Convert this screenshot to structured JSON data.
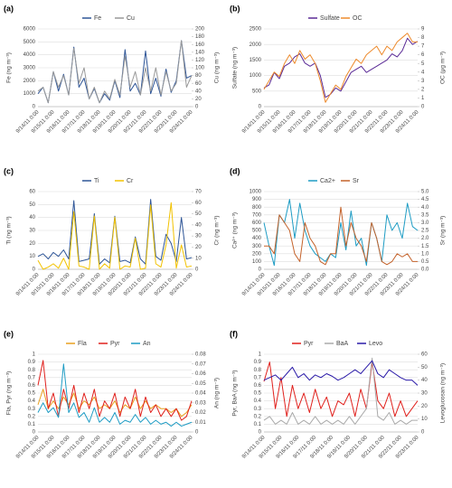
{
  "chart_data": [
    {
      "type": "line",
      "title": "(a)",
      "y_label": "Fe (ng m⁻³)",
      "y2_label": "Cu (ng m⁻³)",
      "categories": [
        "9/14/11 0:00",
        null,
        null,
        "9/15/11 0:00",
        null,
        null,
        "9/16/11 0:00",
        null,
        null,
        "9/17/11 0:00",
        null,
        null,
        "9/18/11 0:00",
        null,
        null,
        "9/19/11 0:00",
        null,
        null,
        "9/20/11 0:00",
        null,
        null,
        "9/21/11 0:00",
        null,
        null,
        "9/22/11 0:00",
        null,
        null,
        "9/23/11 0:00",
        null,
        null,
        "9/24/11 0:00"
      ],
      "ylim": [
        0,
        6000
      ],
      "yticks": [
        0,
        1000,
        2000,
        3000,
        4000,
        5000,
        6000
      ],
      "y2lim": [
        0,
        200
      ],
      "y2ticks": [
        0,
        20,
        40,
        60,
        80,
        100,
        120,
        140,
        160,
        180,
        200
      ],
      "grid": true,
      "series": [
        {
          "name": "Fe",
          "color": "#2e5597",
          "values": [
            1000,
            1500,
            300,
            2700,
            1200,
            2500,
            900,
            4600,
            1500,
            2200,
            600,
            1400,
            300,
            1000,
            500,
            2000,
            700,
            4400,
            1200,
            1800,
            900,
            4300,
            1000,
            2200,
            800,
            2900,
            1100,
            2000,
            5100,
            2200,
            2400
          ]
        },
        {
          "name": "Cu",
          "color": "#999999",
          "axis": "y2",
          "values": [
            40,
            50,
            10,
            90,
            50,
            80,
            30,
            150,
            60,
            100,
            20,
            50,
            10,
            40,
            20,
            70,
            30,
            130,
            50,
            90,
            30,
            100,
            40,
            100,
            30,
            90,
            40,
            60,
            170,
            50,
            80
          ]
        }
      ]
    },
    {
      "type": "line",
      "title": "(b)",
      "y_label": "Sulfate (ng m⁻³)",
      "y2_label": "OC (μg m⁻³)",
      "categories": [
        "9/14/11 0:00",
        null,
        null,
        "9/15/11 0:00",
        null,
        null,
        "9/16/11 0:00",
        null,
        null,
        "9/17/11 0:00",
        null,
        null,
        "9/18/11 0:00",
        null,
        null,
        "9/19/11 0:00",
        null,
        null,
        "9/20/11 0:00",
        null,
        null,
        "9/21/11 0:00",
        null,
        null,
        "9/22/11 0:00",
        null,
        null,
        "9/23/11 0:00",
        null,
        null,
        "9/24/11 0:00"
      ],
      "ylim": [
        0,
        2500
      ],
      "yticks": [
        0,
        500,
        1000,
        1500,
        2000,
        2500
      ],
      "y2lim": [
        0,
        9
      ],
      "y2ticks": [
        0,
        1,
        2,
        3,
        4,
        5,
        6,
        7,
        8,
        9
      ],
      "grid": true,
      "series": [
        {
          "name": "Sulfate",
          "color": "#5a2a96",
          "values": [
            600,
            700,
            1100,
            900,
            1300,
            1400,
            1600,
            1700,
            1400,
            1300,
            1400,
            1000,
            300,
            400,
            600,
            500,
            800,
            1100,
            1200,
            1300,
            1100,
            1200,
            1300,
            1400,
            1500,
            1700,
            1600,
            1800,
            2200,
            2000,
            2100
          ]
        },
        {
          "name": "OC",
          "color": "#ed8a2c",
          "axis": "y2",
          "values": [
            2,
            3,
            4,
            3.5,
            5,
            6,
            5,
            6.5,
            5.5,
            6,
            5,
            3,
            0.5,
            1.5,
            2.5,
            2,
            3.5,
            4.5,
            5.5,
            5,
            6,
            6.5,
            7,
            6,
            7,
            6.5,
            7.5,
            8,
            8.5,
            7.5,
            7.5
          ]
        }
      ]
    },
    {
      "type": "line",
      "title": "(c)",
      "y_label": "Ti (ng m⁻³)",
      "y2_label": "Cr (ng m⁻³)",
      "categories": [
        "9/14/11 0:00",
        null,
        null,
        "9/15/11 0:00",
        null,
        null,
        "9/16/11 0:00",
        null,
        null,
        "9/17/11 0:00",
        null,
        null,
        "9/18/11 0:00",
        null,
        null,
        "9/19/11 0:00",
        null,
        null,
        "9/20/11 0:00",
        null,
        null,
        "9/21/11 0:00",
        null,
        null,
        "9/22/11 0:00",
        null,
        null,
        "9/23/11 0:00",
        null,
        null,
        "9/24/11 0:00"
      ],
      "ylim": [
        0,
        60
      ],
      "yticks": [
        0,
        10,
        20,
        30,
        40,
        50,
        60
      ],
      "y2lim": [
        0,
        70
      ],
      "y2ticks": [
        0,
        10,
        20,
        30,
        40,
        50,
        60,
        70
      ],
      "grid": true,
      "series": [
        {
          "name": "Ti",
          "color": "#2e5597",
          "values": [
            10,
            12,
            8,
            13,
            10,
            15,
            8,
            53,
            6,
            7,
            8,
            43,
            4,
            8,
            5,
            41,
            6,
            7,
            5,
            25,
            8,
            4,
            54,
            10,
            7,
            27,
            20,
            6,
            40,
            8,
            9
          ]
        },
        {
          "name": "Cr",
          "color": "#f2c200",
          "axis": "y2",
          "values": [
            8,
            0,
            2,
            5,
            1,
            10,
            0,
            52,
            3,
            2,
            0,
            48,
            0,
            5,
            1,
            47,
            0,
            3,
            2,
            28,
            0,
            1,
            58,
            5,
            2,
            22,
            60,
            1,
            22,
            2,
            3
          ]
        }
      ]
    },
    {
      "type": "line",
      "title": "(d)",
      "y_label": "Ca²⁺ (ng m⁻³)",
      "y2_label": "Sr (ng m⁻³)",
      "categories": [
        "9/14/11 0:00",
        null,
        null,
        "9/15/11 0:00",
        null,
        null,
        "9/16/11 0:00",
        null,
        null,
        "9/17/11 0:00",
        null,
        null,
        "9/18/11 0:00",
        null,
        null,
        "9/19/11 0:00",
        null,
        null,
        "9/20/11 0:00",
        null,
        null,
        "9/21/11 0:00",
        null,
        null,
        "9/22/11 0:00",
        null,
        null,
        "9/23/11 0:00",
        null,
        null,
        "9/24/11 0:00"
      ],
      "ylim": [
        0,
        1000
      ],
      "yticks": [
        0,
        100,
        200,
        300,
        400,
        500,
        600,
        700,
        800,
        900,
        1000
      ],
      "y2lim": [
        0,
        5
      ],
      "y2ticks": [
        {
          "value": 0,
          "label": "0.0"
        },
        0.5,
        {
          "value": 1,
          "label": "1.0"
        },
        1.5,
        {
          "value": 2,
          "label": "2.0"
        },
        2.5,
        {
          "value": 3,
          "label": "3.0"
        },
        3.5,
        {
          "value": 4,
          "label": "4.0"
        },
        4.5,
        {
          "value": 5,
          "label": "5.0"
        }
      ],
      "grid": true,
      "series": [
        {
          "name": "Ca2+",
          "color": "#1e9cc4",
          "values": [
            600,
            300,
            50,
            700,
            600,
            900,
            400,
            850,
            500,
            300,
            200,
            150,
            100,
            200,
            150,
            600,
            250,
            750,
            300,
            400,
            50,
            600,
            400,
            100,
            700,
            500,
            600,
            400,
            850,
            550,
            500
          ]
        },
        {
          "name": "Sr",
          "color": "#c4622a",
          "axis": "y2",
          "values": [
            1.5,
            1.5,
            1.0,
            3.5,
            3.0,
            2.5,
            1.0,
            0.5,
            3.0,
            2.0,
            1.5,
            0.5,
            0.3,
            1.0,
            1.0,
            4.0,
            1.5,
            3.0,
            2.0,
            1.5,
            0.5,
            3.0,
            2.0,
            0.5,
            0.3,
            0.5,
            1.0,
            0.8,
            1.0,
            0.5,
            0.5
          ]
        }
      ]
    },
    {
      "type": "line",
      "title": "(e)",
      "y_label": "Fla, Pyr (ng m⁻³)",
      "y2_label": "An (ng m⁻³)",
      "categories": [
        "9/14/11 0:00",
        null,
        null,
        "9/15/11 0:00",
        null,
        null,
        "9/16/11 0:00",
        null,
        null,
        "9/17/11 0:00",
        null,
        null,
        "9/18/11 0:00",
        null,
        null,
        "9/19/11 0:00",
        null,
        null,
        "9/20/11 0:00",
        null,
        null,
        "9/21/11 0:00",
        null,
        null,
        "9/22/11 0:00",
        null,
        null,
        "9/23/11 0:00",
        null,
        null,
        "9/24/11 0:00"
      ],
      "ylim": [
        0,
        1
      ],
      "yticks": [
        0,
        0.1,
        0.2,
        0.3,
        0.4,
        0.5,
        0.6,
        0.7,
        0.8,
        0.9,
        1
      ],
      "y2lim": [
        0,
        0.08
      ],
      "y2ticks": [
        0,
        0.01,
        0.02,
        0.03,
        0.04,
        0.05,
        0.06,
        0.07,
        0.08
      ],
      "grid": true,
      "series": [
        {
          "name": "Fla",
          "color": "#e8a020",
          "values": [
            0.35,
            0.55,
            0.3,
            0.4,
            0.3,
            0.45,
            0.35,
            0.5,
            0.3,
            0.4,
            0.35,
            0.45,
            0.3,
            0.35,
            0.3,
            0.4,
            0.25,
            0.35,
            0.3,
            0.45,
            0.3,
            0.4,
            0.3,
            0.35,
            0.3,
            0.3,
            0.25,
            0.3,
            0.2,
            0.25,
            0.35
          ]
        },
        {
          "name": "Pyr",
          "color": "#e0201c",
          "values": [
            0.6,
            0.92,
            0.3,
            0.5,
            0.2,
            0.55,
            0.3,
            0.6,
            0.25,
            0.5,
            0.3,
            0.55,
            0.2,
            0.4,
            0.3,
            0.5,
            0.2,
            0.45,
            0.3,
            0.55,
            0.2,
            0.45,
            0.25,
            0.35,
            0.2,
            0.3,
            0.2,
            0.3,
            0.15,
            0.2,
            0.4
          ]
        },
        {
          "name": "An",
          "color": "#1e9cc4",
          "axis": "y2",
          "values": [
            0.02,
            0.03,
            0.02,
            0.025,
            0.015,
            0.07,
            0.02,
            0.03,
            0.015,
            0.02,
            0.01,
            0.025,
            0.01,
            0.015,
            0.01,
            0.02,
            0.008,
            0.012,
            0.01,
            0.018,
            0.01,
            0.015,
            0.008,
            0.012,
            0.008,
            0.01,
            0.006,
            0.01,
            0.006,
            0.008,
            0.01
          ]
        }
      ]
    },
    {
      "type": "line",
      "title": "(f)",
      "y_label": "Pyr, BaA (ng m⁻³)",
      "y2_label": "Levoglucosan (ng m⁻³)",
      "categories": [
        "9/14/11 0:00",
        null,
        null,
        "9/15/11 0:00",
        null,
        null,
        "9/16/11 0:00",
        null,
        null,
        "9/17/11 0:00",
        null,
        null,
        "9/18/11 0:00",
        null,
        null,
        "9/19/11 0:00",
        null,
        null,
        "9/20/11 0:00",
        null,
        null,
        "9/21/11 0:00",
        null,
        null,
        "9/22/11 0:00",
        null,
        null,
        "9/23/11 0:00"
      ],
      "ylim": [
        0,
        1
      ],
      "yticks": [
        0,
        0.1,
        0.2,
        0.3,
        0.4,
        0.5,
        0.6,
        0.7,
        0.8,
        0.9,
        1
      ],
      "y2lim": [
        0,
        60
      ],
      "y2ticks": [
        0,
        10,
        20,
        30,
        40,
        50,
        60
      ],
      "grid": true,
      "series": [
        {
          "name": "Pyr",
          "color": "#e0201c",
          "values": [
            0.65,
            0.9,
            0.3,
            0.7,
            0.2,
            0.6,
            0.3,
            0.5,
            0.25,
            0.55,
            0.3,
            0.45,
            0.2,
            0.4,
            0.35,
            0.5,
            0.2,
            0.55,
            0.3,
            0.9,
            0.4,
            0.3,
            0.5,
            0.2,
            0.4,
            0.2,
            0.3,
            0.4
          ]
        },
        {
          "name": "BaA",
          "color": "#aaaaaa",
          "values": [
            0.15,
            0.2,
            0.1,
            0.15,
            0.1,
            0.25,
            0.1,
            0.15,
            0.1,
            0.2,
            0.1,
            0.15,
            0.1,
            0.15,
            0.1,
            0.2,
            0.1,
            0.2,
            0.3,
            0.95,
            0.2,
            0.15,
            0.25,
            0.1,
            0.15,
            0.1,
            0.15,
            0.15
          ]
        },
        {
          "name": "Levo",
          "color": "#2a1aa8",
          "axis": "y2",
          "values": [
            40,
            42,
            44,
            40,
            45,
            50,
            42,
            45,
            40,
            44,
            42,
            45,
            43,
            40,
            42,
            45,
            48,
            45,
            50,
            55,
            45,
            42,
            48,
            45,
            42,
            40,
            40,
            36
          ]
        }
      ]
    }
  ]
}
